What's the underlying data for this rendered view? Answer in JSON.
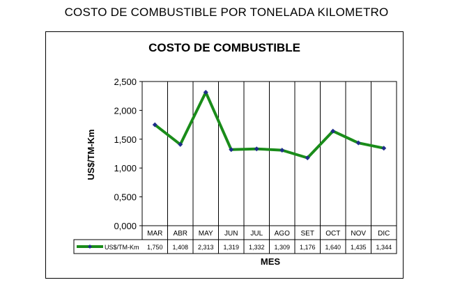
{
  "page_title": "COSTO DE COMBUSTIBLE POR TONELADA KILOMETRO",
  "chart_data": {
    "type": "line",
    "title": "COSTO DE COMBUSTIBLE",
    "xlabel": "MES",
    "ylabel": "US$/TM-Km",
    "categories": [
      "MAR",
      "ABR",
      "MAY",
      "JUN",
      "JUL",
      "AGO",
      "SET",
      "OCT",
      "NOV",
      "DIC"
    ],
    "series": [
      {
        "name": "US$/TM-Km",
        "values": [
          1.75,
          1.408,
          2.313,
          1.319,
          1.332,
          1.309,
          1.176,
          1.64,
          1.435,
          1.344
        ],
        "value_labels": [
          "1,750",
          "1,408",
          "2,313",
          "1,319",
          "1,332",
          "1,309",
          "1,176",
          "1,640",
          "1,435",
          "1,344"
        ],
        "line_color": "#1a8c1a",
        "marker_color": "#1f2d8a"
      }
    ],
    "ylim": [
      0,
      2.5
    ],
    "yticks": [
      0,
      0.5,
      1.0,
      1.5,
      2.0,
      2.5
    ],
    "ytick_labels": [
      "0,000",
      "0,500",
      "1,000",
      "1,500",
      "2,000",
      "2,500"
    ],
    "grid": "vertical",
    "legend": "data-table"
  }
}
